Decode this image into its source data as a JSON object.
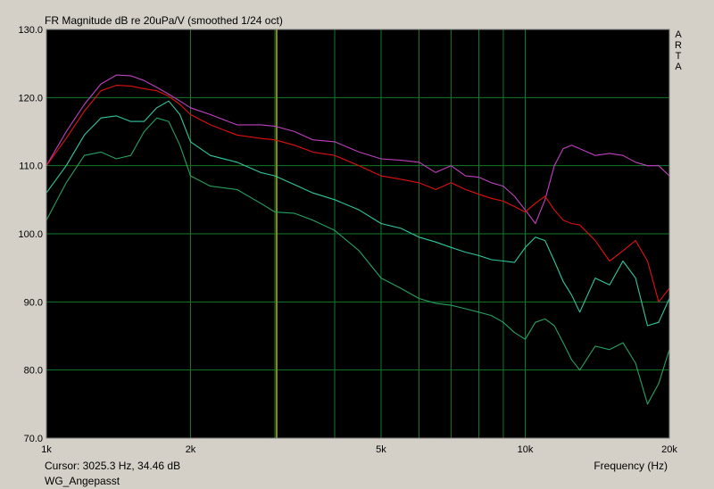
{
  "app": {
    "brand_letters": [
      "A",
      "R",
      "T",
      "A"
    ],
    "cursor_readout": "Cursor: 3025.3 Hz, 34.46 dB",
    "dataset_name": "WG_Angepasst"
  },
  "colors": {
    "background": "#000000",
    "grid": "#0f7a2a",
    "cursor_line": "#8a8a10",
    "frame": "#d4d0c8"
  },
  "chart_data": {
    "type": "line",
    "title": "FR Magnitude dB re 20uPa/V (smoothed 1/24 oct)",
    "xlabel": "Frequency (Hz)",
    "ylabel": "",
    "x_scale": "log",
    "xlim": [
      1000,
      20000
    ],
    "ylim": [
      70,
      130
    ],
    "grid": true,
    "x_ticks": [
      {
        "value": 1000,
        "label": "1k"
      },
      {
        "value": 2000,
        "label": "2k"
      },
      {
        "value": 5000,
        "label": "5k"
      },
      {
        "value": 10000,
        "label": "10k"
      },
      {
        "value": 20000,
        "label": "20k"
      }
    ],
    "y_ticks": [
      {
        "value": 70,
        "label": "70.0"
      },
      {
        "value": 80,
        "label": "80.0"
      },
      {
        "value": 90,
        "label": "90.0"
      },
      {
        "value": 100,
        "label": "100.0"
      },
      {
        "value": 110,
        "label": "110.0"
      },
      {
        "value": 120,
        "label": "120.0"
      },
      {
        "value": 130,
        "label": "130.0"
      }
    ],
    "x_gridlines": [
      2000,
      3000,
      4000,
      5000,
      6000,
      7000,
      8000,
      9000,
      10000,
      20000
    ],
    "cursor_frequency": 3025.3,
    "series": [
      {
        "color": "#c040c0",
        "x": [
          1000,
          1100,
          1200,
          1300,
          1400,
          1500,
          1600,
          1700,
          1800,
          1900,
          2000,
          2200,
          2500,
          2800,
          3000,
          3300,
          3600,
          4000,
          4500,
          5000,
          5500,
          6000,
          6500,
          7000,
          7500,
          8000,
          8500,
          9000,
          9500,
          10000,
          10500,
          11000,
          11500,
          12000,
          12500,
          13000,
          14000,
          15000,
          16000,
          17000,
          18000,
          19000,
          20000
        ],
        "y": [
          110,
          115,
          119,
          122,
          123.3,
          123.2,
          122.5,
          121.5,
          120.5,
          119.5,
          118.5,
          117.5,
          116,
          116,
          115.8,
          115,
          113.8,
          113.5,
          112,
          111,
          110.8,
          110.5,
          109,
          110,
          108.5,
          108.3,
          107.5,
          107,
          105.5,
          103.5,
          101.5,
          105,
          110,
          112.5,
          113,
          112.5,
          111.5,
          111.8,
          111.5,
          110.5,
          110,
          110,
          108.5
        ]
      },
      {
        "color": "#e01010",
        "x": [
          1000,
          1100,
          1200,
          1300,
          1400,
          1500,
          1600,
          1700,
          1800,
          1900,
          2000,
          2200,
          2500,
          2800,
          3000,
          3300,
          3600,
          4000,
          4500,
          5000,
          5500,
          6000,
          6500,
          7000,
          7500,
          8000,
          8500,
          9000,
          9500,
          10000,
          10500,
          11000,
          11500,
          12000,
          12500,
          13000,
          14000,
          15000,
          16000,
          17000,
          18000,
          19000,
          20000
        ],
        "y": [
          110,
          114,
          118,
          121,
          121.8,
          121.7,
          121.3,
          121,
          120.2,
          119,
          117.5,
          116,
          114.5,
          114,
          113.8,
          113,
          112,
          111.5,
          110,
          108.5,
          108,
          107.5,
          106.5,
          107.5,
          106.5,
          105.8,
          105.2,
          104.8,
          104,
          103.2,
          104.5,
          105.5,
          103.5,
          102,
          101.5,
          101.3,
          99,
          96,
          97.5,
          99,
          96,
          90,
          92
        ]
      },
      {
        "color": "#30c8a0",
        "x": [
          1000,
          1100,
          1200,
          1300,
          1400,
          1500,
          1600,
          1700,
          1800,
          1900,
          2000,
          2200,
          2500,
          2800,
          3000,
          3300,
          3600,
          4000,
          4500,
          5000,
          5500,
          6000,
          6500,
          7000,
          7500,
          8000,
          8500,
          9000,
          9500,
          10000,
          10500,
          11000,
          11500,
          12000,
          12500,
          13000,
          14000,
          15000,
          16000,
          17000,
          18000,
          19000,
          20000
        ],
        "y": [
          106,
          110,
          114.5,
          117,
          117.3,
          116.5,
          116.5,
          118.5,
          119.5,
          117.5,
          113.5,
          111.5,
          110.5,
          109,
          108.5,
          107.2,
          106,
          105,
          103.5,
          101.5,
          100.8,
          99.5,
          98.8,
          98,
          97.3,
          96.8,
          96.2,
          96,
          95.8,
          98,
          99.5,
          99,
          96,
          93,
          91,
          88.5,
          93.5,
          92.5,
          96,
          93.5,
          86.5,
          87,
          90.5
        ]
      },
      {
        "color": "#28a060",
        "x": [
          1000,
          1100,
          1200,
          1300,
          1400,
          1500,
          1600,
          1700,
          1800,
          1900,
          2000,
          2200,
          2500,
          2800,
          3000,
          3300,
          3600,
          4000,
          4500,
          5000,
          5500,
          6000,
          6500,
          7000,
          7500,
          8000,
          8500,
          9000,
          9500,
          10000,
          10500,
          11000,
          11500,
          12000,
          12500,
          13000,
          14000,
          15000,
          16000,
          17000,
          18000,
          19000,
          20000
        ],
        "y": [
          102,
          107.5,
          111.5,
          112,
          111,
          111.5,
          115,
          117,
          116.5,
          113,
          108.5,
          107,
          106.5,
          104.5,
          103.2,
          103,
          102,
          100.5,
          97.5,
          93.5,
          92,
          90.5,
          89.8,
          89.5,
          89,
          88.5,
          88,
          87,
          85.5,
          84.5,
          87,
          87.5,
          86.5,
          84,
          81.5,
          80,
          83.5,
          83,
          84,
          81,
          75,
          78,
          83
        ]
      }
    ]
  }
}
